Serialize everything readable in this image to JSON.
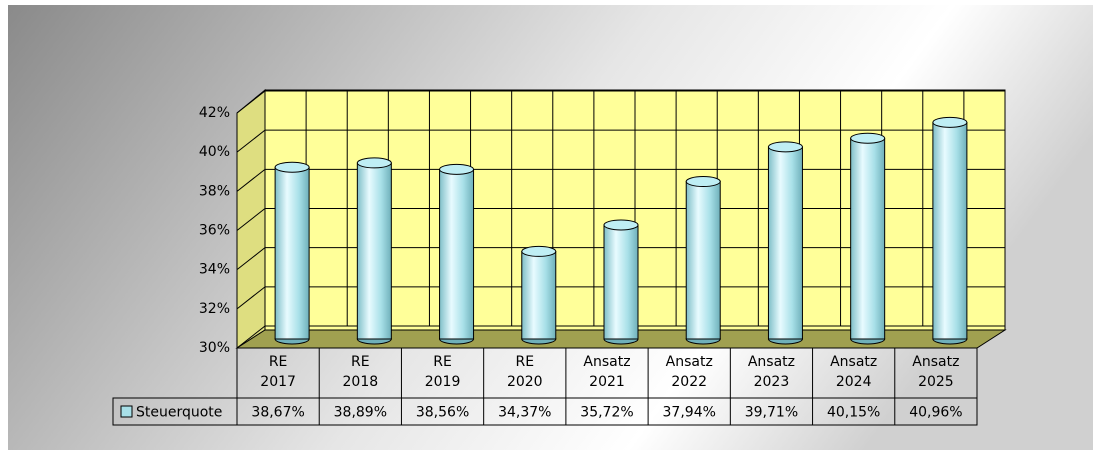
{
  "chart_data": {
    "type": "bar",
    "categories": [
      [
        "RE",
        "2017"
      ],
      [
        "RE",
        "2018"
      ],
      [
        "RE",
        "2019"
      ],
      [
        "RE",
        "2020"
      ],
      [
        "Ansatz",
        "2021"
      ],
      [
        "Ansatz",
        "2022"
      ],
      [
        "Ansatz",
        "2023"
      ],
      [
        "Ansatz",
        "2024"
      ],
      [
        "Ansatz",
        "2025"
      ]
    ],
    "series": [
      {
        "name": "Steuerquote",
        "color": "#a8e0e8",
        "values": [
          38.67,
          38.89,
          38.56,
          34.37,
          35.72,
          37.94,
          39.71,
          40.15,
          40.96
        ],
        "value_labels": [
          "38,67%",
          "38,89%",
          "38,56%",
          "34,37%",
          "35,72%",
          "37,94%",
          "39,71%",
          "40,15%",
          "40,96%"
        ]
      }
    ],
    "ylim": [
      30,
      42
    ],
    "yticks": [
      {
        "value": 30,
        "label": "30%"
      },
      {
        "value": 32,
        "label": "32%"
      },
      {
        "value": 34,
        "label": "34%"
      },
      {
        "value": 36,
        "label": "36%"
      },
      {
        "value": 38,
        "label": "38%"
      },
      {
        "value": 40,
        "label": "40%"
      },
      {
        "value": 42,
        "label": "42%"
      }
    ],
    "grid": true
  }
}
